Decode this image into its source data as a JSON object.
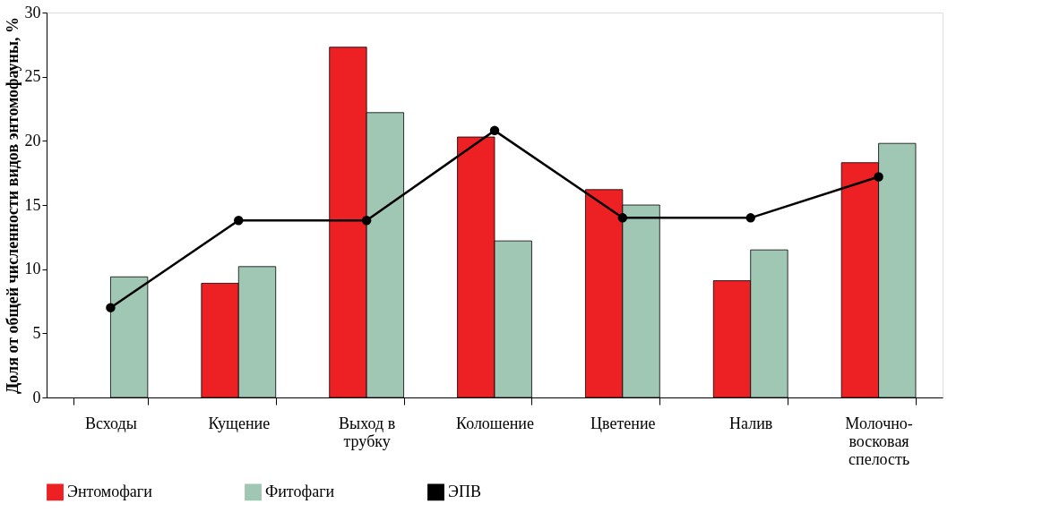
{
  "chart_data": {
    "type": "bar",
    "ylabel": "Доля от общей численности видов энтомофауны, %",
    "categories": [
      "Всходы",
      "Кущение",
      "Выход в трубку",
      "Колошение",
      "Цветение",
      "Налив",
      "Молочно-восковая спелость"
    ],
    "series": [
      {
        "name": "Энтомофаги",
        "color": "#ed2024",
        "values": [
          null,
          8.9,
          27.3,
          20.3,
          16.2,
          9.1,
          18.3
        ]
      },
      {
        "name": "Фитофаги",
        "color": "#a0c6b4",
        "values": [
          9.4,
          10.2,
          22.2,
          12.2,
          15.0,
          11.5,
          19.8
        ]
      },
      {
        "name": "ЭПВ",
        "type": "line",
        "color": "#000000",
        "marker": "circle",
        "line_style": "solid",
        "values": [
          7.0,
          13.8,
          13.8,
          20.8,
          14.0,
          14.0,
          17.2
        ]
      }
    ],
    "ylim": [
      0,
      30
    ],
    "yticks": [
      0,
      5,
      10,
      15,
      20,
      25,
      30
    ],
    "grid": false,
    "legend": "bottom"
  }
}
